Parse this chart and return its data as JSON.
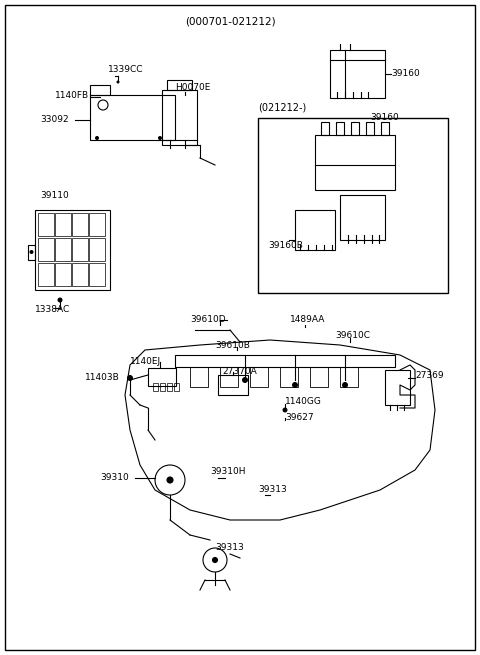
{
  "title": "",
  "background_color": "#ffffff",
  "border_color": "#000000",
  "text_color": "#000000",
  "line_color": "#000000",
  "fig_width": 4.8,
  "fig_height": 6.55,
  "dpi": 100,
  "labels": {
    "header": "(000701-021212)",
    "subheader": "(021212-)",
    "part_39160_top": "39160",
    "part_39160_mid": "39160",
    "part_39160B": "39160B",
    "part_1339CC": "1339CC",
    "part_H0070E": "H0070E",
    "part_1140FB": "1140FB",
    "part_33092": "33092",
    "part_39110": "39110",
    "part_1338AC": "1338AC",
    "part_39610D": "39610D",
    "part_39610B": "39610B",
    "part_1489AA": "1489AA",
    "part_39610C": "39610C",
    "part_1140EJ": "1140EJ",
    "part_27370A": "27370A",
    "part_11403B": "11403B",
    "part_1140GG": "1140GG",
    "part_39627": "39627",
    "part_27369": "27369",
    "part_39310": "39310",
    "part_39310H": "39310H",
    "part_39313_top": "39313",
    "part_39313_bot": "39313"
  }
}
